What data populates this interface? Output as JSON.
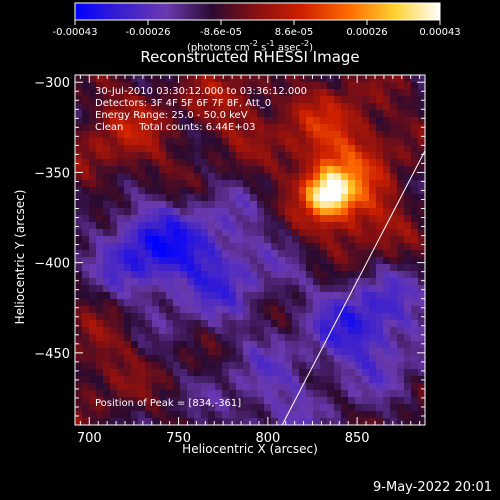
{
  "window": {
    "footer_date": "9-May-2022 20:01"
  },
  "colorbar": {
    "ticks": [
      "-0.00043",
      "-0.00026",
      "-8.6e-05",
      "8.6e-05",
      "0.00026",
      "0.00043"
    ],
    "range": [
      -0.00043,
      0.00043
    ],
    "unit_html": "(photons cm<sup>-2</sup> s<sup>-1</sup> asec<sup>-2</sup>)",
    "colors": [
      "#0000ff",
      "#3a1fd0",
      "#6a3ab0",
      "#2a0a30",
      "#8a1010",
      "#d02000",
      "#ff6a00",
      "#ffd030",
      "#ffffff"
    ]
  },
  "panel": {
    "title": "Reconstructed RHESSI Image",
    "info_lines": [
      "30-Jul-2010 03:30:12.000 to 03:36:12.000",
      "Detectors: 3F 4F 5F 6F 7F 8F, Att_0",
      "Energy Range: 25.0 - 50.0 keV",
      "Clean     Total counts: 6.44E+03"
    ],
    "peak_text": "Position of Peak = [834,-361]"
  },
  "chart_data": {
    "type": "heatmap",
    "title": "Reconstructed RHESSI Image",
    "xlabel": "Heliocentric X (arcsec)",
    "ylabel": "Heliocentric Y (arcsec)",
    "xlim": [
      692,
      888
    ],
    "ylim": [
      -490,
      -296
    ],
    "xticks": [
      700,
      750,
      800,
      850
    ],
    "yticks": [
      -300,
      -350,
      -400,
      -450
    ],
    "peak": [
      834,
      -361
    ],
    "limb": [
      [
        808,
        -490
      ],
      [
        888,
        -338
      ]
    ]
  }
}
